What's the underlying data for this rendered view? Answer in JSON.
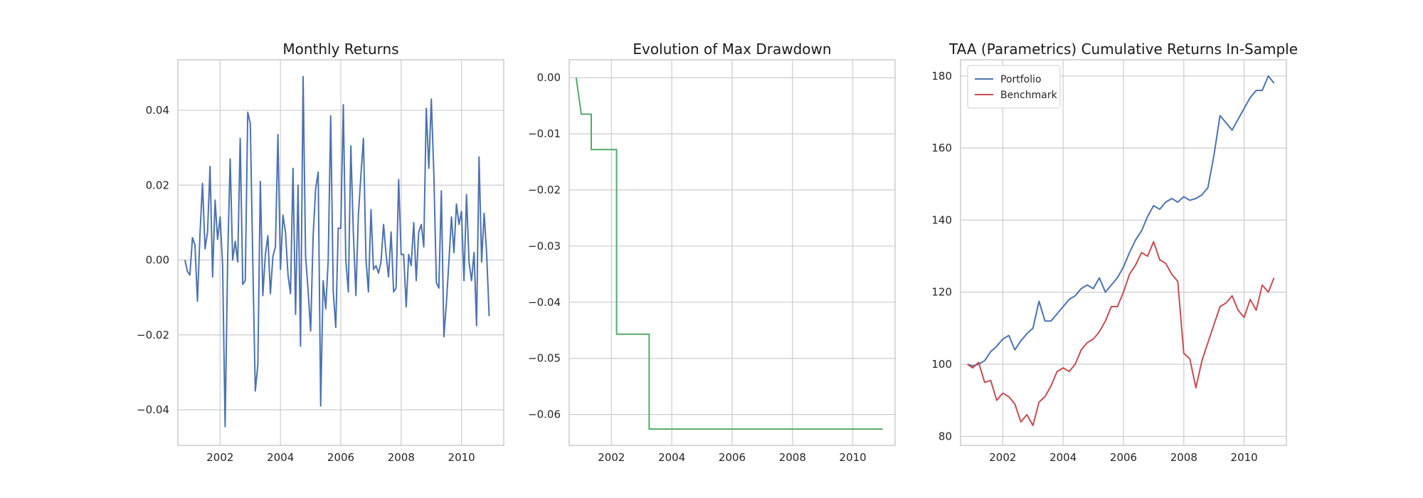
{
  "chart_data": [
    {
      "type": "line",
      "title": "Monthly Returns",
      "xlabel": "",
      "ylabel": "",
      "xlim": [
        2000.6,
        2011.4
      ],
      "ylim": [
        -0.0495,
        0.0535
      ],
      "xticks": [
        2002,
        2004,
        2006,
        2008,
        2010
      ],
      "xtick_labels": [
        "2002",
        "2004",
        "2006",
        "2008",
        "2010"
      ],
      "yticks": [
        -0.04,
        -0.02,
        0.0,
        0.02,
        0.04
      ],
      "ytick_labels": [
        "−0.04",
        "−0.02",
        "0.00",
        "0.02",
        "0.04"
      ],
      "grid": true,
      "x_start": 2000.833,
      "x_step": 0.08333,
      "series": [
        {
          "color": "#4c72b0",
          "values": [
            0.0,
            -0.003,
            -0.004,
            0.006,
            0.004,
            -0.011,
            0.007,
            0.0205,
            0.003,
            0.0075,
            0.025,
            -0.0045,
            0.016,
            0.0055,
            0.0115,
            -0.0015,
            -0.0445,
            0.0005,
            0.027,
            0.0,
            0.005,
            -0.0005,
            0.0325,
            -0.0065,
            -0.0055,
            0.0395,
            0.0365,
            -0.0005,
            -0.035,
            -0.028,
            0.021,
            -0.0095,
            0.0015,
            0.0065,
            -0.009,
            0.001,
            0.0035,
            0.0335,
            -0.0025,
            0.012,
            0.0075,
            -0.004,
            -0.009,
            0.0245,
            -0.0145,
            0.02,
            -0.023,
            0.049,
            0.001,
            -0.008,
            -0.019,
            0.0065,
            0.019,
            0.0235,
            -0.039,
            -0.0055,
            -0.013,
            0.0,
            0.0385,
            -0.0085,
            -0.018,
            0.0085,
            0.0085,
            0.0415,
            0.0,
            -0.0085,
            0.0305,
            0.0075,
            -0.0095,
            0.012,
            0.0225,
            0.0325,
            0.0005,
            -0.0085,
            0.0135,
            -0.0025,
            -0.0015,
            -0.0035,
            -0.0005,
            0.0095,
            0.0015,
            -0.0045,
            0.0075,
            -0.0085,
            -0.0075,
            0.0215,
            0.0015,
            0.0015,
            -0.0125,
            0.0015,
            -0.0015,
            0.01,
            -0.0055,
            0.0075,
            0.0095,
            0.0035,
            0.0405,
            0.0245,
            0.043,
            0.0235,
            -0.006,
            -0.0075,
            0.0185,
            -0.0205,
            -0.0115,
            -0.0005,
            0.0115,
            0.002,
            0.015,
            0.0095,
            0.013,
            -0.0055,
            0.0175,
            -0.0005,
            -0.0055,
            0.002,
            -0.0175,
            0.0275,
            -0.0005,
            0.0125,
            0.002,
            -0.015
          ]
        }
      ]
    },
    {
      "type": "line",
      "title": "Evolution of Max Drawdown",
      "xlabel": "",
      "ylabel": "",
      "xlim": [
        2000.6,
        2011.4
      ],
      "ylim": [
        -0.0655,
        0.0032
      ],
      "xticks": [
        2002,
        2004,
        2006,
        2008,
        2010
      ],
      "xtick_labels": [
        "2002",
        "2004",
        "2006",
        "2008",
        "2010"
      ],
      "yticks": [
        -0.06,
        -0.05,
        -0.04,
        -0.03,
        -0.02,
        -0.01,
        0.0
      ],
      "ytick_labels": [
        "−0.06",
        "−0.05",
        "−0.04",
        "−0.03",
        "−0.02",
        "−0.01",
        "0.00"
      ],
      "grid": true,
      "series": [
        {
          "color": "#55a868",
          "x": [
            2000.83,
            2001.0,
            2001.0,
            2001.33,
            2001.33,
            2002.17,
            2002.17,
            2003.25,
            2003.25,
            2010.99
          ],
          "values": [
            0.0,
            -0.0065,
            -0.0065,
            -0.0065,
            -0.0128,
            -0.0128,
            -0.0457,
            -0.0457,
            -0.0626,
            -0.0626
          ]
        }
      ]
    },
    {
      "type": "line",
      "title": "TAA (Parametrics) Cumulative Returns In-Sample",
      "xlabel": "",
      "ylabel": "",
      "xlim": [
        2000.6,
        2011.4
      ],
      "ylim": [
        77.5,
        184.5
      ],
      "xticks": [
        2002,
        2004,
        2006,
        2008,
        2010
      ],
      "xtick_labels": [
        "2002",
        "2004",
        "2006",
        "2008",
        "2010"
      ],
      "yticks": [
        80,
        100,
        120,
        140,
        160,
        180
      ],
      "ytick_labels": [
        "80",
        "100",
        "120",
        "140",
        "160",
        "180"
      ],
      "grid": true,
      "legend": "top-left",
      "series": [
        {
          "name": "Portfolio",
          "color": "#4c72b0",
          "x": [
            2000.83,
            2001.0,
            2001.2,
            2001.4,
            2001.6,
            2001.8,
            2002.0,
            2002.2,
            2002.4,
            2002.6,
            2002.8,
            2003.0,
            2003.2,
            2003.4,
            2003.6,
            2003.8,
            2004.0,
            2004.2,
            2004.4,
            2004.6,
            2004.8,
            2005.0,
            2005.2,
            2005.4,
            2005.6,
            2005.8,
            2006.0,
            2006.2,
            2006.4,
            2006.6,
            2006.8,
            2007.0,
            2007.2,
            2007.4,
            2007.6,
            2007.8,
            2008.0,
            2008.2,
            2008.4,
            2008.6,
            2008.8,
            2009.0,
            2009.2,
            2009.4,
            2009.6,
            2009.8,
            2010.0,
            2010.2,
            2010.4,
            2010.6,
            2010.8,
            2010.99
          ],
          "values": [
            100.0,
            99.5,
            100.0,
            101.0,
            103.5,
            105.0,
            107.0,
            108.0,
            104.0,
            106.5,
            108.5,
            110.0,
            117.5,
            112.0,
            112.0,
            114.0,
            116.0,
            118.0,
            119.0,
            121.0,
            122.0,
            121.0,
            124.0,
            120.0,
            122.0,
            124.0,
            127.0,
            131.0,
            134.5,
            137.0,
            141.0,
            144.0,
            143.0,
            145.0,
            146.0,
            145.0,
            146.5,
            145.5,
            146.0,
            147.0,
            149.0,
            158.0,
            169.0,
            167.0,
            165.0,
            168.0,
            171.0,
            174.0,
            176.0,
            176.0,
            180.0,
            178.0
          ]
        },
        {
          "name": "Benchmark",
          "color": "#c44e52",
          "x": [
            2000.83,
            2001.0,
            2001.2,
            2001.4,
            2001.6,
            2001.8,
            2002.0,
            2002.2,
            2002.4,
            2002.6,
            2002.8,
            2003.0,
            2003.2,
            2003.4,
            2003.6,
            2003.8,
            2004.0,
            2004.2,
            2004.4,
            2004.6,
            2004.8,
            2005.0,
            2005.2,
            2005.4,
            2005.6,
            2005.8,
            2006.0,
            2006.2,
            2006.4,
            2006.6,
            2006.8,
            2007.0,
            2007.2,
            2007.4,
            2007.6,
            2007.8,
            2008.0,
            2008.2,
            2008.4,
            2008.6,
            2008.8,
            2009.0,
            2009.2,
            2009.4,
            2009.6,
            2009.8,
            2010.0,
            2010.2,
            2010.4,
            2010.6,
            2010.8,
            2010.99
          ],
          "values": [
            100.0,
            99.0,
            100.5,
            95.0,
            95.5,
            90.0,
            92.0,
            91.0,
            89.0,
            84.0,
            86.0,
            83.0,
            89.5,
            91.0,
            94.0,
            98.0,
            99.0,
            98.0,
            100.0,
            104.0,
            106.0,
            107.0,
            109.0,
            112.0,
            116.0,
            116.0,
            120.0,
            125.0,
            127.5,
            131.0,
            130.0,
            134.0,
            129.0,
            128.0,
            125.0,
            123.0,
            103.0,
            101.5,
            93.5,
            101.0,
            106.0,
            111.0,
            116.0,
            117.0,
            119.0,
            115.0,
            113.0,
            118.0,
            115.0,
            122.0,
            120.0,
            124.0
          ]
        }
      ]
    }
  ]
}
